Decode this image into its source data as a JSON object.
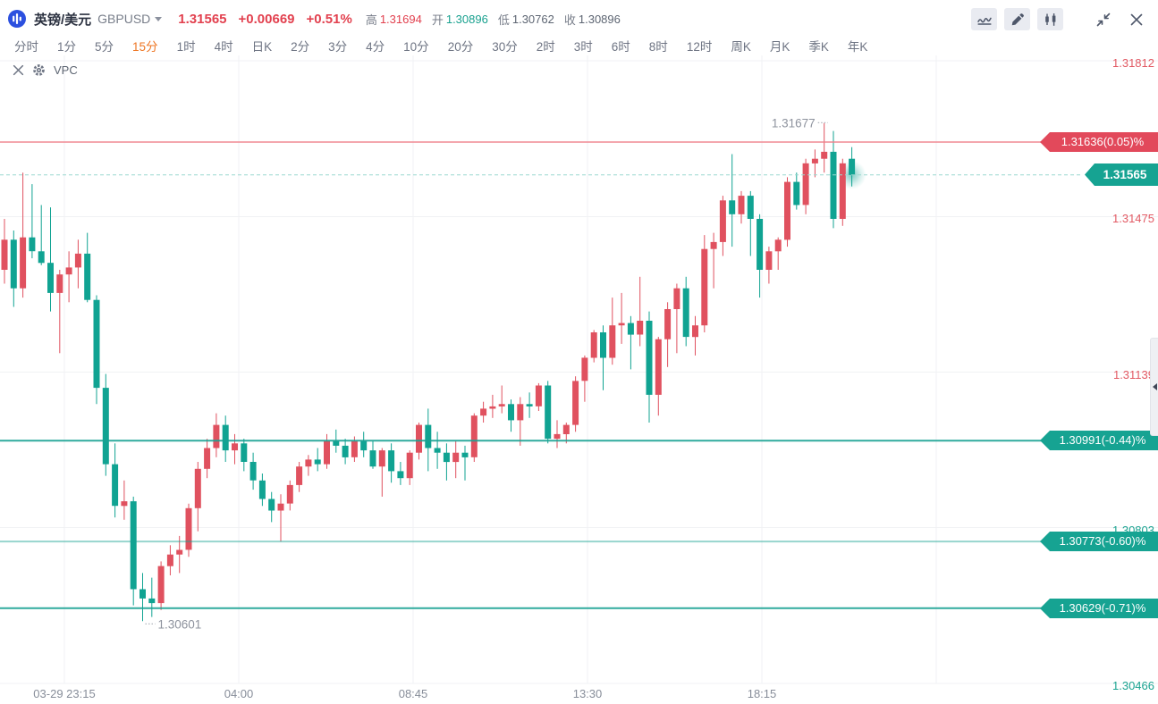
{
  "header": {
    "instrument_cn": "英镑/美元",
    "symbol": "GBPUSD",
    "last_price": "1.31565",
    "change": "+0.00669",
    "change_pct": "+0.51%",
    "stats": [
      {
        "label": "高",
        "value": "1.31694",
        "color": "#E2414F"
      },
      {
        "label": "开",
        "value": "1.30896",
        "color": "#19A18F"
      },
      {
        "label": "低",
        "value": "1.30762",
        "color": "#5E6673"
      },
      {
        "label": "收",
        "value": "1.30896",
        "color": "#5E6673"
      }
    ],
    "toolbar_icons": [
      "line-chart",
      "pencil",
      "candlestick",
      "collapse",
      "close"
    ]
  },
  "timeframes": {
    "items": [
      "分时",
      "1分",
      "5分",
      "15分",
      "1时",
      "4时",
      "日K",
      "2分",
      "3分",
      "4分",
      "10分",
      "20分",
      "30分",
      "2时",
      "3时",
      "6时",
      "8时",
      "12时",
      "周K",
      "月K",
      "季K",
      "年K"
    ],
    "selected": "15分"
  },
  "indicator": {
    "name": "VPC"
  },
  "colors": {
    "up": "#E0515F",
    "down": "#10A392",
    "accent_orange": "#EE7522",
    "grid": "#F1F2F4",
    "axis_text": "#878D99",
    "annotation_text": "#8E939E"
  },
  "chart_data": {
    "type": "candlestick",
    "symbol": "GBPUSD",
    "timeframe": "15分",
    "high_annotation": {
      "text": "1.31677",
      "candle_index": 89,
      "kind": "high"
    },
    "low_annotation": {
      "text": "1.30601",
      "candle_index": 15,
      "kind": "low"
    },
    "y_axis_labels": [
      {
        "price": 1.31812,
        "text": "1.31812",
        "color": "#E25A64"
      },
      {
        "price": 1.31475,
        "text": "1.31475",
        "color": "#E25A64"
      },
      {
        "price": 1.31139,
        "text": "1.31139",
        "color": "#E25A64"
      },
      {
        "price": 1.30803,
        "text": "1.30803",
        "color": "#1CA492"
      },
      {
        "price": 1.30466,
        "text": "1.30466",
        "color": "#1CA492"
      }
    ],
    "x_axis_labels": [
      "03-29 23:15",
      "04:00",
      "08:45",
      "13:30",
      "18:15"
    ],
    "price_lines": [
      {
        "price": 1.31636,
        "label": "1.31636(0.05)%",
        "line_color": "#EE7D88",
        "tag_color": "#E2495B",
        "style": "solid",
        "opacity": 0.9,
        "current": false
      },
      {
        "price": 1.31565,
        "label": "1.31565",
        "line_color": "#9BD8D0",
        "tag_color": "#16A392",
        "style": "dashed",
        "opacity": 1,
        "current": true
      },
      {
        "price": 1.30991,
        "label": "1.30991(-0.44)%",
        "line_color": "#18A192",
        "tag_color": "#16A392",
        "style": "solid",
        "opacity": 0.9,
        "current": false
      },
      {
        "price": 1.30773,
        "label": "1.30773(-0.60)%",
        "line_color": "#18A192",
        "tag_color": "#16A392",
        "style": "solid",
        "opacity": 0.45,
        "current": false
      },
      {
        "price": 1.30629,
        "label": "1.30629(-0.71)%",
        "line_color": "#18A192",
        "tag_color": "#16A392",
        "style": "solid",
        "opacity": 0.9,
        "current": false
      }
    ],
    "candles": [
      [
        1.3136,
        1.3147,
        1.3133,
        1.31425
      ],
      [
        1.31425,
        1.31445,
        1.3128,
        1.3132
      ],
      [
        1.3132,
        1.3157,
        1.313,
        1.3143
      ],
      [
        1.3143,
        1.31545,
        1.31385,
        1.314
      ],
      [
        1.314,
        1.315,
        1.3137,
        1.31375
      ],
      [
        1.31375,
        1.31495,
        1.3127,
        1.3131
      ],
      [
        1.3131,
        1.3136,
        1.3118,
        1.3135
      ],
      [
        1.3135,
        1.314,
        1.3129,
        1.31365
      ],
      [
        1.31365,
        1.31425,
        1.3132,
        1.31395
      ],
      [
        1.31395,
        1.3144,
        1.3129,
        1.31295
      ],
      [
        1.31295,
        1.31305,
        1.3107,
        1.31105
      ],
      [
        1.31105,
        1.31135,
        1.30915,
        1.3094
      ],
      [
        1.3094,
        1.30985,
        1.30825,
        1.3085
      ],
      [
        1.3085,
        1.30905,
        1.3082,
        1.3086
      ],
      [
        1.3086,
        1.3087,
        1.30635,
        1.3067
      ],
      [
        1.3067,
        1.30705,
        1.30601,
        1.3065
      ],
      [
        1.3065,
        1.30695,
        1.3061,
        1.3064
      ],
      [
        1.3064,
        1.3073,
        1.30625,
        1.3072
      ],
      [
        1.3072,
        1.30765,
        1.307,
        1.30745
      ],
      [
        1.30745,
        1.30785,
        1.30705,
        1.30755
      ],
      [
        1.30755,
        1.30855,
        1.3074,
        1.30845
      ],
      [
        1.30845,
        1.30945,
        1.30795,
        1.3093
      ],
      [
        1.3093,
        1.30995,
        1.3091,
        1.30975
      ],
      [
        1.30975,
        1.3105,
        1.30955,
        1.31025
      ],
      [
        1.31025,
        1.31045,
        1.30945,
        1.3097
      ],
      [
        1.3097,
        1.31005,
        1.3094,
        1.30985
      ],
      [
        1.30985,
        1.30995,
        1.30925,
        1.30945
      ],
      [
        1.30945,
        1.30965,
        1.30885,
        1.30905
      ],
      [
        1.30905,
        1.3092,
        1.3085,
        1.30865
      ],
      [
        1.30865,
        1.3088,
        1.30815,
        1.3084
      ],
      [
        1.3084,
        1.30875,
        1.30773,
        1.30855
      ],
      [
        1.30855,
        1.30905,
        1.3084,
        1.30895
      ],
      [
        1.30895,
        1.30945,
        1.3088,
        1.30935
      ],
      [
        1.30935,
        1.3096,
        1.30915,
        1.3095
      ],
      [
        1.3095,
        1.30975,
        1.30925,
        1.3094
      ],
      [
        1.3094,
        1.31005,
        1.3093,
        1.3099
      ],
      [
        1.3099,
        1.31015,
        1.30965,
        1.3098
      ],
      [
        1.3098,
        1.30995,
        1.3094,
        1.30955
      ],
      [
        1.30955,
        1.31,
        1.30945,
        1.3099
      ],
      [
        1.3099,
        1.3101,
        1.30955,
        1.3097
      ],
      [
        1.3097,
        1.3099,
        1.3093,
        1.30935
      ],
      [
        1.30935,
        1.30975,
        1.3087,
        1.3097
      ],
      [
        1.3097,
        1.30985,
        1.309,
        1.30925
      ],
      [
        1.30925,
        1.30945,
        1.30895,
        1.3091
      ],
      [
        1.3091,
        1.3097,
        1.30895,
        1.30965
      ],
      [
        1.30965,
        1.3103,
        1.3095,
        1.31025
      ],
      [
        1.31025,
        1.3106,
        1.30925,
        1.30975
      ],
      [
        1.30975,
        1.3101,
        1.3093,
        1.30965
      ],
      [
        1.30965,
        1.30985,
        1.30905,
        1.30945
      ],
      [
        1.30945,
        1.3099,
        1.3091,
        1.30965
      ],
      [
        1.30965,
        1.3098,
        1.30905,
        1.30955
      ],
      [
        1.30955,
        1.3105,
        1.30945,
        1.31045
      ],
      [
        1.31045,
        1.31075,
        1.3103,
        1.3106
      ],
      [
        1.3106,
        1.3109,
        1.3104,
        1.31065
      ],
      [
        1.31065,
        1.3111,
        1.3105,
        1.3107
      ],
      [
        1.3107,
        1.3108,
        1.3101,
        1.31035
      ],
      [
        1.31035,
        1.31085,
        1.3098,
        1.3107
      ],
      [
        1.3107,
        1.31095,
        1.3104,
        1.31065
      ],
      [
        1.31065,
        1.31115,
        1.31055,
        1.3111
      ],
      [
        1.3111,
        1.3112,
        1.30985,
        1.30995
      ],
      [
        1.30995,
        1.31035,
        1.30975,
        1.31005
      ],
      [
        1.31005,
        1.3103,
        1.30985,
        1.31025
      ],
      [
        1.31025,
        1.3113,
        1.3101,
        1.3112
      ],
      [
        1.3112,
        1.31175,
        1.31075,
        1.3117
      ],
      [
        1.3117,
        1.3123,
        1.3116,
        1.31225
      ],
      [
        1.31225,
        1.3124,
        1.311,
        1.3117
      ],
      [
        1.3117,
        1.313,
        1.31155,
        1.3124
      ],
      [
        1.3124,
        1.3131,
        1.312,
        1.31245
      ],
      [
        1.31245,
        1.3126,
        1.31145,
        1.3122
      ],
      [
        1.3122,
        1.31345,
        1.31195,
        1.3125
      ],
      [
        1.3125,
        1.3127,
        1.3103,
        1.3109
      ],
      [
        1.3109,
        1.31215,
        1.31045,
        1.3121
      ],
      [
        1.3121,
        1.3129,
        1.3115,
        1.31275
      ],
      [
        1.31275,
        1.3133,
        1.3118,
        1.3132
      ],
      [
        1.3132,
        1.31345,
        1.31195,
        1.31215
      ],
      [
        1.31215,
        1.3126,
        1.31175,
        1.3124
      ],
      [
        1.3124,
        1.31435,
        1.31225,
        1.31405
      ],
      [
        1.31405,
        1.3144,
        1.3132,
        1.3142
      ],
      [
        1.3142,
        1.3152,
        1.3139,
        1.3151
      ],
      [
        1.3151,
        1.3161,
        1.3141,
        1.3148
      ],
      [
        1.3148,
        1.3153,
        1.3146,
        1.3152
      ],
      [
        1.3152,
        1.3153,
        1.3139,
        1.3147
      ],
      [
        1.3147,
        1.3148,
        1.313,
        1.3136
      ],
      [
        1.3136,
        1.3141,
        1.3133,
        1.314
      ],
      [
        1.314,
        1.3143,
        1.3136,
        1.31425
      ],
      [
        1.31425,
        1.3156,
        1.3141,
        1.3155
      ],
      [
        1.3155,
        1.3157,
        1.3149,
        1.315
      ],
      [
        1.315,
        1.316,
        1.3148,
        1.3159
      ],
      [
        1.3159,
        1.3162,
        1.3156,
        1.316
      ],
      [
        1.316,
        1.31677,
        1.3157,
        1.31615
      ],
      [
        1.31615,
        1.3166,
        1.3145,
        1.3147
      ],
      [
        1.3147,
        1.316,
        1.31455,
        1.3159
      ],
      [
        1.316,
        1.31625,
        1.3154,
        1.31565
      ]
    ]
  }
}
